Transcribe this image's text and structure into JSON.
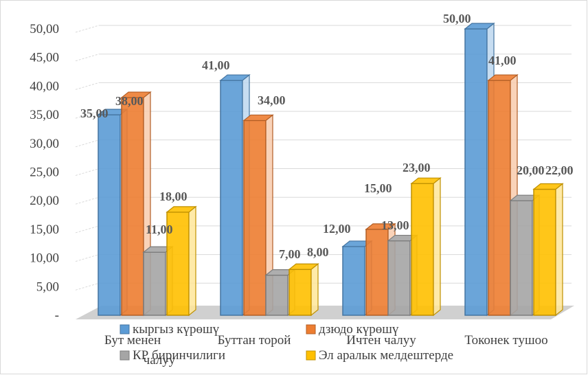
{
  "chart_data": {
    "type": "bar",
    "categories": [
      "Бут менен чалуу",
      "Буттан торой",
      "Ичтен чалуу",
      "Токонек тушоо"
    ],
    "series": [
      {
        "name": "кыргыз күрөшү",
        "values": [
          35,
          41,
          12,
          50
        ],
        "color": "#5b9bd5"
      },
      {
        "name": "дзюдо күрөшү",
        "values": [
          38,
          34,
          15,
          41
        ],
        "color": "#ed7d31"
      },
      {
        "name": "КР  биринчилиги",
        "values": [
          11,
          7,
          13,
          20
        ],
        "color": "#a5a5a5"
      },
      {
        "name": "Эл аралык мелдештерде",
        "values": [
          18,
          8,
          23,
          22
        ],
        "color": "#ffc000"
      }
    ],
    "data_labels": [
      [
        "35,00",
        "41,00",
        "12,00",
        "50,00"
      ],
      [
        "38,00",
        "34,00",
        "15,00",
        "41,00"
      ],
      [
        "11,00",
        "7,00",
        "13,00",
        "20,00"
      ],
      [
        "18,00",
        "8,00",
        "23,00",
        "22,00"
      ]
    ],
    "y_ticks": [
      "-",
      "5,00",
      "10,00",
      "15,00",
      "20,00",
      "25,00",
      "30,00",
      "35,00",
      "40,00",
      "45,00",
      "50,00"
    ],
    "ylim": [
      0,
      50
    ],
    "grid": true,
    "legend": "bottom",
    "style": "3d-clustered-column"
  }
}
